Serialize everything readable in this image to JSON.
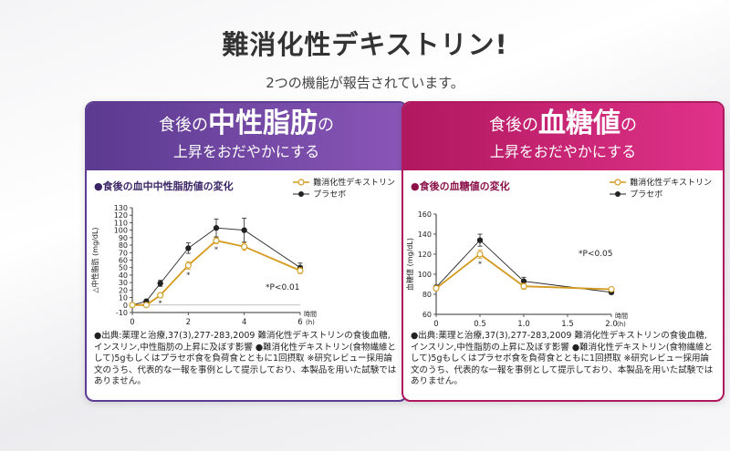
{
  "page": {
    "title": "難消化性デキストリン!",
    "subtitle": "2つの機能が報告されています。"
  },
  "legend": {
    "dextrin": "難消化性デキストリン",
    "placebo": "プラセボ"
  },
  "colors": {
    "dextrin": "#d49a1e",
    "placebo": "#222222",
    "left_theme": "#5f3c93",
    "right_theme": "#b0185f"
  },
  "cards": [
    {
      "header_pre": "食後の",
      "header_big": "中性脂肪",
      "header_post": "の",
      "header_line2": "上昇をおだやかにする",
      "chart_title": "●食後の血中中性脂肪値の変化",
      "pvalue": "*P<0.01",
      "xlabel": "時間\n(h)",
      "ylabel": "△中性脂肪 (mg/dL)",
      "source": "●出典:薬理と治療,37(3),277-283,2009 難消化性デキストリンの食後血糖,インスリン,中性脂肪の上昇に及ぼす影響 ●難消化性デキストリン(食物繊維として)5gもしくはプラセボ食を負荷食とともに1回摂取 ※研究レビュー採用論文のうち、代表的な一報を事例として提示しており、本製品を用いた試験ではありません。"
    },
    {
      "header_pre": "食後の",
      "header_big": "血糖値",
      "header_post": "の",
      "header_line2": "上昇をおだやかにする",
      "chart_title": "●食後の血糖値の変化",
      "pvalue": "*P<0.05",
      "xlabel": "時間\n(h)",
      "ylabel": "血糖値 (mg/dL)",
      "source": "●出典:薬理と治療,37(3),277-283,2009 難消化性デキストリンの食後血糖,インスリン,中性脂肪の上昇に及ぼす影響 ●難消化性デキストリン(食物繊維として)5gもしくはプラセボ食を負荷食とともに1回摂取 ※研究レビュー採用論文のうち、代表的な一報を事例として提示しており、本製品を用いた試験ではありません。"
    }
  ],
  "chart_data": [
    {
      "type": "line",
      "title": "●食後の血中中性脂肪値の変化",
      "xlabel": "時間 (h)",
      "ylabel": "△中性脂肪 (mg/dL)",
      "xlim": [
        0,
        6
      ],
      "ylim": [
        -10,
        130
      ],
      "x_ticks": [
        0,
        2,
        4,
        6
      ],
      "y_ticks": [
        -10,
        0,
        10,
        20,
        30,
        40,
        50,
        60,
        70,
        80,
        90,
        100,
        110,
        120,
        130
      ],
      "x": [
        0,
        0.5,
        1,
        2,
        3,
        4,
        6
      ],
      "series": [
        {
          "name": "難消化性デキストリン",
          "values": [
            0,
            0,
            13,
            53,
            86,
            78,
            46
          ],
          "error": [
            0,
            2,
            3,
            5,
            4,
            5,
            4
          ]
        },
        {
          "name": "プラセボ",
          "values": [
            0,
            5,
            29,
            76,
            103,
            100,
            50
          ],
          "error": [
            0,
            2,
            4,
            7,
            12,
            16,
            6
          ]
        }
      ],
      "significance_markers": [
        {
          "x": 1,
          "label": "*"
        },
        {
          "x": 2,
          "label": "*"
        },
        {
          "x": 3,
          "label": "*"
        }
      ]
    },
    {
      "type": "line",
      "title": "●食後の血糖値の変化",
      "xlabel": "時間 (h)",
      "ylabel": "血糖値 (mg/dL)",
      "xlim": [
        0,
        2.0
      ],
      "ylim": [
        60,
        160
      ],
      "x_ticks": [
        0,
        0.5,
        1.0,
        1.5,
        2.0
      ],
      "y_ticks": [
        60,
        80,
        100,
        120,
        140,
        160
      ],
      "x": [
        0,
        0.5,
        1.0,
        2.0
      ],
      "series": [
        {
          "name": "難消化性デキストリン",
          "values": [
            86,
            120,
            88,
            85
          ],
          "error": [
            2,
            4,
            3,
            2
          ]
        },
        {
          "name": "プラセボ",
          "values": [
            87,
            134,
            93,
            82
          ],
          "error": [
            2,
            6,
            4,
            2
          ]
        }
      ],
      "significance_markers": [
        {
          "x": 0.5,
          "label": "*"
        }
      ]
    }
  ]
}
